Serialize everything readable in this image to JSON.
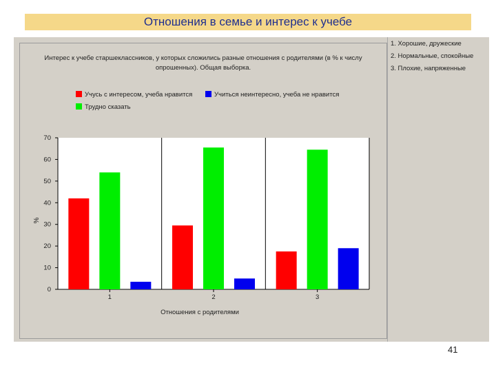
{
  "slide": {
    "title": "Отношения в семье и интерес к учебе",
    "page_number": "41"
  },
  "side_notes": [
    "1. Хорошие, дружеские",
    "2. Нормальные, спокойные",
    "3. Плохие, напряженные"
  ],
  "chart_data": {
    "type": "bar",
    "title": "Интерес к учебе старшеклассников, у которых сложились разные отношения с родителями (в % к числу опрошенных). Общая выборка.",
    "xlabel": "Отношения с родителями",
    "ylabel": "%",
    "categories": [
      "1",
      "2",
      "3"
    ],
    "ylim": [
      0,
      70
    ],
    "yticks": [
      0,
      10,
      20,
      30,
      40,
      50,
      60,
      70
    ],
    "grid": false,
    "series": [
      {
        "name": "Учусь с интересом, учеба нравится",
        "color": "#ff0000",
        "values": [
          42,
          29.5,
          17.5
        ]
      },
      {
        "name": "Трудно сказать",
        "color": "#00ee00",
        "values": [
          54,
          65.5,
          64.5
        ]
      },
      {
        "name": "Учиться неинтересно, учеба не нравится",
        "color": "#0000ee",
        "values": [
          3.5,
          5,
          19
        ]
      }
    ]
  }
}
